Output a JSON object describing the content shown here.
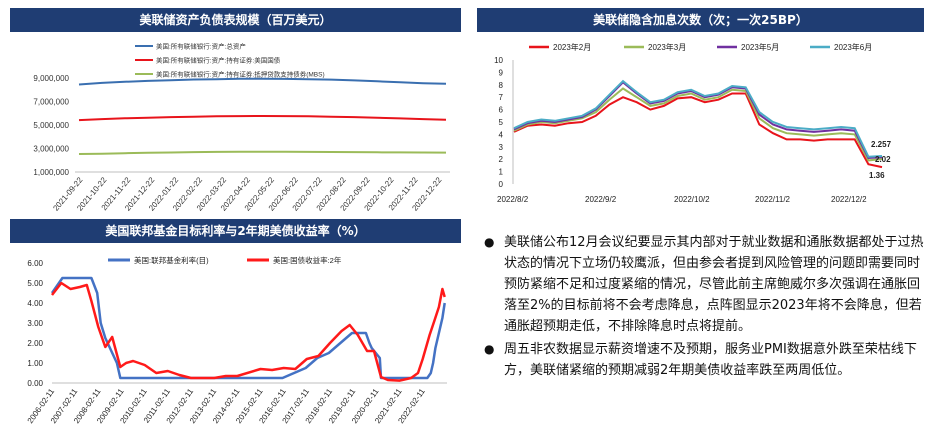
{
  "charts": [
    {
      "id": "balance",
      "header": "美联储资产负债表规模（百万美元）",
      "chart_data": {
        "type": "line",
        "title": "美联储资产负债表规模（百万美元）",
        "legend_position": "top-left",
        "ylim": [
          1000000,
          9000000
        ],
        "yticks": [
          1000000,
          3000000,
          5000000,
          7000000,
          9000000
        ],
        "ytick_labels": [
          "1,000,000",
          "3,000,000",
          "5,000,000",
          "7,000,000",
          "9,000,000"
        ],
        "xticks": [
          "2021-09-22",
          "2021-10-22",
          "2021-11-22",
          "2021-12-22",
          "2022-01-22",
          "2022-02-22",
          "2022-03-22",
          "2022-04-22",
          "2022-05-22",
          "2022-06-22",
          "2022-07-22",
          "2022-08-22",
          "2022-09-22",
          "2022-10-22",
          "2022-11-22",
          "2022-12-22"
        ],
        "series": [
          {
            "name": "美国:所有联储银行:资产:总资产",
            "color": "#3a6fb0",
            "values": [
              8450000,
              8580000,
              8680000,
              8750000,
              8810000,
              8870000,
              8900000,
              8930000,
              8940000,
              8920000,
              8900000,
              8860000,
              8800000,
              8720000,
              8630000,
              8560000,
              8510000
            ]
          },
          {
            "name": "美国:所有联储银行:资产:持有证券:美国国债",
            "color": "#e8141b",
            "values": [
              5420000,
              5500000,
              5570000,
              5620000,
              5670000,
              5710000,
              5740000,
              5760000,
              5770000,
              5760000,
              5740000,
              5710000,
              5670000,
              5620000,
              5560000,
              5500000,
              5440000
            ]
          },
          {
            "name": "美国:所有联储银行:资产:持有证券:抵押贷款支持债券(MBS)",
            "color": "#9bbb59",
            "values": [
              2530000,
              2560000,
              2600000,
              2630000,
              2660000,
              2690000,
              2710000,
              2720000,
              2720000,
              2720000,
              2710000,
              2700000,
              2690000,
              2680000,
              2670000,
              2660000,
              2650000
            ]
          }
        ]
      }
    },
    {
      "id": "hikes",
      "header": "美联储隐含加息次数（次；一次25BP）",
      "chart_data": {
        "type": "line",
        "title": "美联储隐含加息次数（次；一次25BP）",
        "legend_position": "top",
        "ylim": [
          0,
          10
        ],
        "yticks": [
          0,
          1,
          2,
          3,
          4,
          5,
          6,
          7,
          8,
          9,
          10
        ],
        "xtick_labels": [
          "2022/8/2",
          "2022/9/2",
          "2022/10/2",
          "2022/11/2",
          "2022/12/2"
        ],
        "annotations": [
          "2.257",
          "2.02",
          "1.36"
        ],
        "series": [
          {
            "name": "2023年2月",
            "color": "#e8141b",
            "values": [
              4.2,
              4.7,
              4.8,
              4.7,
              4.9,
              5.0,
              5.5,
              6.4,
              7.0,
              6.6,
              6.0,
              6.3,
              6.9,
              7.0,
              6.6,
              6.8,
              7.3,
              7.3,
              4.8,
              4.1,
              3.6,
              3.6,
              3.5,
              3.6,
              3.6,
              3.6,
              1.6,
              1.36
            ]
          },
          {
            "name": "2023年3月",
            "color": "#9bbb59",
            "values": [
              4.3,
              4.8,
              5.0,
              4.9,
              5.1,
              5.3,
              5.8,
              6.8,
              7.7,
              7.0,
              6.3,
              6.5,
              7.1,
              7.3,
              6.8,
              7.0,
              7.6,
              7.5,
              5.3,
              4.5,
              4.1,
              4.0,
              3.9,
              4.0,
              4.1,
              4.0,
              1.9,
              2.02
            ]
          },
          {
            "name": "2023年5月",
            "color": "#7030a0",
            "values": [
              4.4,
              4.9,
              5.1,
              5.0,
              5.2,
              5.4,
              6.0,
              7.1,
              8.2,
              7.3,
              6.5,
              6.7,
              7.3,
              7.5,
              7.0,
              7.2,
              7.8,
              7.7,
              5.6,
              4.8,
              4.4,
              4.3,
              4.2,
              4.3,
              4.4,
              4.3,
              2.1,
              2.15
            ]
          },
          {
            "name": "2023年6月",
            "color": "#4bacc6",
            "values": [
              4.5,
              5.0,
              5.2,
              5.1,
              5.3,
              5.5,
              6.1,
              7.2,
              8.3,
              7.4,
              6.6,
              6.8,
              7.4,
              7.6,
              7.1,
              7.3,
              7.9,
              7.8,
              5.8,
              5.0,
              4.6,
              4.5,
              4.4,
              4.5,
              4.6,
              4.5,
              2.2,
              2.257
            ]
          }
        ]
      }
    },
    {
      "id": "rates",
      "header": "美国联邦基金目标利率与2年期美债收益率（%）",
      "chart_data": {
        "type": "line",
        "title": "美国联邦基金目标利率与2年期美债收益率（%）",
        "legend_position": "top",
        "ylim": [
          0,
          6
        ],
        "yticks": [
          0,
          1,
          2,
          3,
          4,
          5,
          6
        ],
        "ytick_labels": [
          "0.00",
          "1.00",
          "2.00",
          "3.00",
          "4.00",
          "5.00",
          "6.00"
        ],
        "xticks": [
          "2006-02-11",
          "2007-02-11",
          "2008-02-11",
          "2009-02-11",
          "2010-02-11",
          "2011-02-11",
          "2012-02-11",
          "2013-02-11",
          "2014-02-11",
          "2015-02-11",
          "2016-02-11",
          "2017-02-11",
          "2018-02-11",
          "2019-02-11",
          "2020-02-11",
          "2021-02-11",
          "2022-02-11"
        ],
        "series": [
          {
            "name": "美国:联邦基金利率(目)",
            "color": "#4472c4",
            "x": [
              2006.0,
              2006.45,
              2007.7,
              2007.95,
              2008.1,
              2008.3,
              2008.8,
              2008.95,
              2015.95,
              2016.95,
              2017.2,
              2017.45,
              2017.95,
              2018.2,
              2018.45,
              2018.7,
              2018.95,
              2019.55,
              2019.7,
              2019.8,
              2020.15,
              2020.2,
              2022.2,
              2022.35,
              2022.45,
              2022.55,
              2022.7,
              2022.85,
              2022.95
            ],
            "values": [
              4.5,
              5.25,
              5.25,
              4.5,
              3.0,
              2.25,
              1.0,
              0.25,
              0.25,
              0.75,
              1.0,
              1.25,
              1.5,
              1.75,
              2.0,
              2.25,
              2.5,
              2.5,
              2.0,
              1.75,
              1.25,
              0.25,
              0.25,
              0.5,
              1.0,
              1.75,
              2.5,
              3.25,
              4.0
            ]
          },
          {
            "name": "美国:国债收益率:2年",
            "color": "#ff1a1a",
            "x": [
              2006.0,
              2006.4,
              2006.8,
              2007.2,
              2007.5,
              2007.7,
              2008.0,
              2008.3,
              2008.6,
              2008.95,
              2009.2,
              2009.5,
              2010.0,
              2010.5,
              2011.0,
              2011.5,
              2012.0,
              2013.0,
              2013.5,
              2014.0,
              2015.0,
              2015.5,
              2016.0,
              2016.5,
              2017.0,
              2017.5,
              2018.0,
              2018.5,
              2018.85,
              2019.2,
              2019.6,
              2019.9,
              2020.2,
              2020.5,
              2021.0,
              2021.5,
              2021.8,
              2022.0,
              2022.3,
              2022.5,
              2022.7,
              2022.85,
              2022.95
            ],
            "values": [
              4.4,
              5.0,
              4.7,
              4.8,
              4.9,
              4.1,
              2.8,
              1.8,
              2.3,
              0.8,
              1.0,
              1.1,
              0.9,
              0.5,
              0.6,
              0.4,
              0.25,
              0.25,
              0.35,
              0.35,
              0.7,
              0.65,
              0.75,
              0.7,
              1.2,
              1.35,
              2.0,
              2.6,
              2.9,
              2.4,
              1.6,
              1.6,
              0.3,
              0.15,
              0.12,
              0.25,
              0.5,
              1.2,
              2.4,
              3.1,
              3.8,
              4.7,
              4.3
            ]
          }
        ]
      }
    }
  ],
  "bullets": [
    "美联储公布12月会议纪要显示其内部对于就业数据和通胀数据都处于过热状态的情况下立场仍较鹰派，但由参会者提到风险管理的问题即需要同时预防紧缩不足和过度紧缩的情况，尽管此前主席鲍威尔多次强调在通胀回落至2%的目标前将不会考虑降息，点阵图显示2023年将不会降息，但若通胀超预期走低，不排除降息时点将提前。",
    "周五非农数据显示薪资增速不及预期，服务业PMI数据意外跌至荣枯线下方，美联储紧缩的预期减弱2年期美债收益率跌至两周低位。"
  ]
}
